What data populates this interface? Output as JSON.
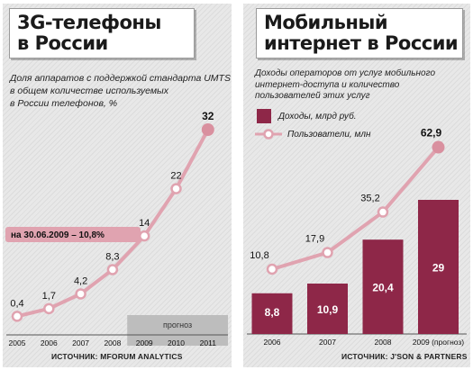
{
  "left": {
    "title_lines": [
      "3G-телефоны",
      "в России"
    ],
    "description_lines": [
      "Доля аппаратов с поддержкой стандарта UMTS",
      "в общем количестве используемых",
      "в России телефонов, %"
    ],
    "forecast_label": "прогноз",
    "annotation": "на 30.06.2009 – 10,8%",
    "source": "ИСТОЧНИК: MFORUM ANALYTICS"
  },
  "right": {
    "title_lines": [
      "Мобильный",
      "интернет в России"
    ],
    "description_lines": [
      "Доходы операторов от услуг мобильного",
      "интернет-доступа и количество",
      "пользователей этих услуг"
    ],
    "source": "ИСТОЧНИК: J'SON & PARTNERS"
  },
  "colors": {
    "accent": "#8e2748",
    "marker_fill": "#d9909f",
    "line": "#e0a3b0",
    "panel": "#e8e8e8",
    "forecast_band": "#bdbdbd"
  },
  "chart_data": [
    {
      "type": "line",
      "categories": [
        "2005",
        "2006",
        "2007",
        "2008",
        "2009",
        "2010",
        "2011"
      ],
      "values": [
        0.4,
        1.7,
        4.2,
        8.3,
        14,
        22,
        32
      ],
      "value_labels": [
        "0,4",
        "1,7",
        "4,2",
        "8,3",
        "14",
        "22",
        "32"
      ],
      "forecast_categories": [
        "2009",
        "2010",
        "2011"
      ],
      "ylim": [
        0,
        32
      ]
    },
    {
      "type": "bar",
      "categories": [
        "2006",
        "2007",
        "2008",
        "2009 (прогноз)"
      ],
      "series": [
        {
          "name": "Доходы, млрд руб.",
          "type": "bar",
          "values": [
            8.8,
            10.9,
            20.4,
            29
          ],
          "labels": [
            "8,8",
            "10,9",
            "20,4",
            "29"
          ]
        },
        {
          "name": "Пользователи, млн",
          "type": "line",
          "values": [
            10.8,
            17.9,
            35.2,
            62.9
          ],
          "labels": [
            "10,8",
            "17,9",
            "35,2",
            "62,9"
          ]
        }
      ]
    }
  ]
}
